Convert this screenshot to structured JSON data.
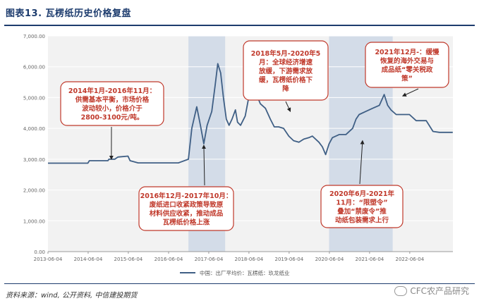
{
  "figure": {
    "title": "图表13. 瓦楞纸历史价格复盘",
    "source": "资料来源：wind, 公开资料, 中信建投期货",
    "watermark": "CFC农产品研究"
  },
  "colors": {
    "line": "#3f5f85",
    "band": "#d3dce8",
    "note_border": "#c0392b",
    "arrow": "#222222",
    "grid": "#ffffff",
    "plot_bg": "#f2f2f2"
  },
  "chart_data": {
    "type": "line",
    "title": "",
    "xlabel": "",
    "ylabel": "",
    "ylim": [
      0,
      7000
    ],
    "xlim": [
      "2013-06-04",
      "2023-07-01"
    ],
    "y_ticks": [
      "0.00",
      "1,000.00",
      "2,000.00",
      "3,000.00",
      "4,000.00",
      "5,000.00",
      "6,000.00",
      "7,000.00"
    ],
    "y_tick_values": [
      0,
      1000,
      2000,
      3000,
      4000,
      5000,
      6000,
      7000
    ],
    "x_ticks": [
      "2013-06-04",
      "2014-06-04",
      "2015-06-04",
      "2016-06-04",
      "2017-06-04",
      "2018-06-04",
      "2019-06-04",
      "2020-06-04",
      "2021-06-04",
      "2022-06-04"
    ],
    "legend": {
      "placement": "bottom",
      "entries": [
        "中国：出厂平均价：瓦楞纸：玖龙纸业"
      ]
    },
    "series": [
      {
        "name": "中国：出厂平均价：瓦楞纸：玖龙纸业",
        "points": [
          [
            "2013-06-04",
            2870
          ],
          [
            "2014-06-01",
            2870
          ],
          [
            "2014-06-15",
            2950
          ],
          [
            "2014-12-01",
            2950
          ],
          [
            "2014-12-10",
            3000
          ],
          [
            "2015-02-01",
            3000
          ],
          [
            "2015-03-01",
            3070
          ],
          [
            "2015-06-01",
            3100
          ],
          [
            "2015-06-20",
            2950
          ],
          [
            "2015-09-01",
            2880
          ],
          [
            "2016-03-01",
            2880
          ],
          [
            "2016-09-01",
            2880
          ],
          [
            "2016-12-01",
            3000
          ],
          [
            "2017-01-01",
            4000
          ],
          [
            "2017-02-15",
            4700
          ],
          [
            "2017-03-20",
            4100
          ],
          [
            "2017-04-20",
            3500
          ],
          [
            "2017-05-20",
            4100
          ],
          [
            "2017-07-01",
            4550
          ],
          [
            "2017-08-01",
            5400
          ],
          [
            "2017-08-25",
            6100
          ],
          [
            "2017-09-20",
            5800
          ],
          [
            "2017-10-15",
            5000
          ],
          [
            "2017-11-10",
            4300
          ],
          [
            "2017-12-05",
            4100
          ],
          [
            "2018-01-01",
            4300
          ],
          [
            "2018-02-01",
            4600
          ],
          [
            "2018-02-20",
            4200
          ],
          [
            "2018-03-20",
            4100
          ],
          [
            "2018-05-01",
            4400
          ],
          [
            "2018-06-15",
            5250
          ],
          [
            "2018-08-01",
            5200
          ],
          [
            "2018-09-15",
            4800
          ],
          [
            "2018-11-01",
            4650
          ],
          [
            "2018-12-15",
            4300
          ],
          [
            "2019-01-20",
            4050
          ],
          [
            "2019-03-01",
            4050
          ],
          [
            "2019-04-15",
            4000
          ],
          [
            "2019-06-01",
            3750
          ],
          [
            "2019-07-15",
            3600
          ],
          [
            "2019-09-01",
            3550
          ],
          [
            "2019-10-15",
            3650
          ],
          [
            "2019-12-01",
            3700
          ],
          [
            "2020-01-01",
            3750
          ],
          [
            "2020-03-01",
            3550
          ],
          [
            "2020-04-01",
            3400
          ],
          [
            "2020-05-01",
            3150
          ],
          [
            "2020-06-01",
            3500
          ],
          [
            "2020-07-01",
            3700
          ],
          [
            "2020-09-01",
            3800
          ],
          [
            "2020-11-01",
            3800
          ],
          [
            "2021-01-01",
            4000
          ],
          [
            "2021-02-01",
            4300
          ],
          [
            "2021-03-01",
            4450
          ],
          [
            "2021-05-01",
            4550
          ],
          [
            "2021-07-01",
            4650
          ],
          [
            "2021-09-01",
            4750
          ],
          [
            "2021-10-15",
            5100
          ],
          [
            "2021-11-15",
            4750
          ],
          [
            "2021-12-15",
            4600
          ],
          [
            "2022-02-01",
            4450
          ],
          [
            "2022-04-01",
            4450
          ],
          [
            "2022-06-01",
            4450
          ],
          [
            "2022-08-01",
            4250
          ],
          [
            "2022-11-01",
            4250
          ],
          [
            "2023-01-01",
            3900
          ],
          [
            "2023-03-01",
            3870
          ],
          [
            "2023-06-30",
            3870
          ]
        ]
      }
    ],
    "shaded_periods": [
      {
        "start": "2016-12-01",
        "end": "2017-10-31"
      },
      {
        "start": "2018-05-01",
        "end": "2020-05-31"
      },
      {
        "start": "2020-06-01",
        "end": "2021-12-31"
      }
    ],
    "shaded_period_fill": [
      true,
      false,
      true
    ],
    "annotations": [
      {
        "lines": [
          "2014年1月-2016年11月：",
          "供需基本平衡，市场价格",
          "波动较小，价格介于",
          "2800-3100元/吨。"
        ],
        "target": [
          "2015-01-01",
          3000
        ]
      },
      {
        "lines": [
          "2016年12月-2017年10月：",
          "废纸进口收紧政策导致原",
          "材料供应收紧，推动成品",
          "瓦楞纸价格上涨"
        ],
        "target": [
          "2017-04-20",
          3450
        ]
      },
      {
        "lines": [
          "2018年5月-2020年5",
          "月：全球经济增速",
          "放缓，下游需求放",
          "缓，瓦楞纸价格下",
          "降"
        ],
        "target": [
          "2019-06-15",
          4550
        ]
      },
      {
        "lines": [
          "2020年6月-2021年",
          "11月：“限塑令”",
          "叠加“禁废令”推",
          "动纸包装需求上行"
        ],
        "target": [
          "2021-04-01",
          3600
        ]
      },
      {
        "lines": [
          "2021年12月-：缓慢",
          "恢复的海外交易与",
          "成品纸“零关税政",
          "策”"
        ],
        "target": [
          "2022-04-01",
          5050
        ]
      }
    ]
  }
}
